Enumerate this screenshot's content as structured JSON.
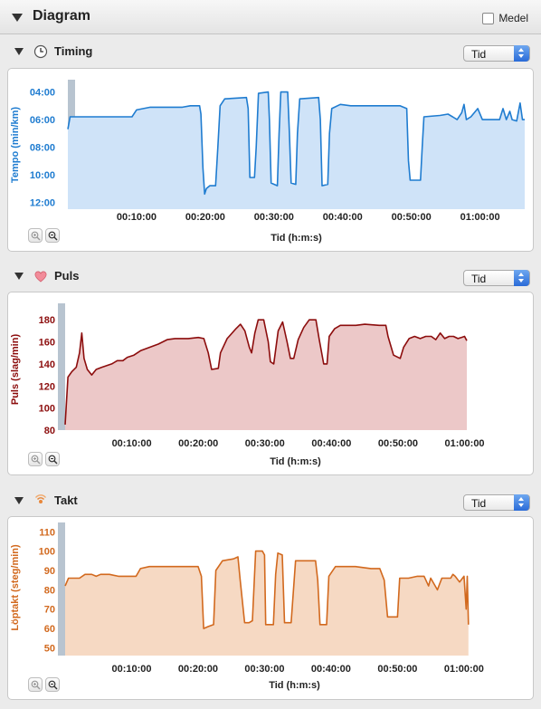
{
  "header": {
    "title": "Diagram",
    "medel_label": "Medel",
    "medel_checked": false
  },
  "sections": [
    {
      "key": "timing",
      "title": "Timing",
      "icon": "clock-icon",
      "select_value": "Tid",
      "color": "#1f7cd0",
      "fill": "#cfe3f8",
      "chart_data": {
        "type": "area",
        "ylabel": "Tempo (min/km)",
        "xlabel": "Tid (h:m:s)",
        "y_ticks": [
          "04:00",
          "06:00",
          "08:00",
          "10:00",
          "12:00"
        ],
        "y_tick_values": [
          4,
          6,
          8,
          10,
          12
        ],
        "ylim": [
          3.5,
          12.5
        ],
        "y_inverted": true,
        "x_ticks": [
          "00:10:00",
          "00:20:00",
          "00:30:00",
          "00:40:00",
          "00:50:00",
          "01:00:00"
        ],
        "x_tick_values": [
          600,
          1200,
          1800,
          2400,
          3000,
          3600
        ],
        "xlim": [
          0,
          3990
        ],
        "points": [
          [
            0,
            6.7
          ],
          [
            20,
            5.8
          ],
          [
            300,
            5.8
          ],
          [
            560,
            5.8
          ],
          [
            600,
            5.3
          ],
          [
            720,
            5.1
          ],
          [
            1000,
            5.1
          ],
          [
            1070,
            5.0
          ],
          [
            1150,
            5.0
          ],
          [
            1162,
            5.6
          ],
          [
            1180,
            9.5
          ],
          [
            1195,
            11.4
          ],
          [
            1210,
            11.0
          ],
          [
            1240,
            10.8
          ],
          [
            1290,
            10.8
          ],
          [
            1310,
            8.0
          ],
          [
            1330,
            5.0
          ],
          [
            1370,
            4.5
          ],
          [
            1560,
            4.4
          ],
          [
            1575,
            5.2
          ],
          [
            1590,
            10.2
          ],
          [
            1630,
            10.2
          ],
          [
            1645,
            8.0
          ],
          [
            1665,
            4.1
          ],
          [
            1750,
            4.0
          ],
          [
            1760,
            6.0
          ],
          [
            1775,
            10.6
          ],
          [
            1830,
            10.8
          ],
          [
            1845,
            7.0
          ],
          [
            1860,
            4.0
          ],
          [
            1920,
            4.0
          ],
          [
            1935,
            7.0
          ],
          [
            1950,
            10.6
          ],
          [
            1990,
            10.7
          ],
          [
            2005,
            7.0
          ],
          [
            2025,
            4.5
          ],
          [
            2190,
            4.4
          ],
          [
            2205,
            6.0
          ],
          [
            2220,
            10.8
          ],
          [
            2270,
            10.7
          ],
          [
            2285,
            7.0
          ],
          [
            2305,
            5.2
          ],
          [
            2380,
            4.9
          ],
          [
            2470,
            5.0
          ],
          [
            2900,
            5.0
          ],
          [
            2960,
            5.2
          ],
          [
            2975,
            9.0
          ],
          [
            2990,
            10.4
          ],
          [
            3080,
            10.4
          ],
          [
            3095,
            8.0
          ],
          [
            3110,
            5.8
          ],
          [
            3250,
            5.7
          ],
          [
            3320,
            5.6
          ],
          [
            3360,
            5.8
          ],
          [
            3400,
            6.0
          ],
          [
            3440,
            5.5
          ],
          [
            3460,
            4.9
          ],
          [
            3480,
            6.0
          ],
          [
            3520,
            5.8
          ],
          [
            3580,
            5.2
          ],
          [
            3620,
            6.0
          ],
          [
            3700,
            6.0
          ],
          [
            3770,
            6.0
          ],
          [
            3800,
            5.2
          ],
          [
            3830,
            6.0
          ],
          [
            3860,
            5.4
          ],
          [
            3880,
            6.0
          ],
          [
            3920,
            6.1
          ],
          [
            3950,
            4.8
          ],
          [
            3970,
            6.0
          ],
          [
            3990,
            6.0
          ]
        ]
      }
    },
    {
      "key": "puls",
      "title": "Puls",
      "icon": "heart-icon",
      "select_value": "Tid",
      "color": "#8c0d0d",
      "fill": "#ecc8c8",
      "chart_data": {
        "type": "area",
        "ylabel": "Puls (slag/min)",
        "xlabel": "Tid (h:m:s)",
        "y_ticks": [
          "180",
          "160",
          "140",
          "120",
          "100",
          "80"
        ],
        "y_tick_values": [
          180,
          160,
          140,
          120,
          100,
          80
        ],
        "ylim": [
          80,
          190
        ],
        "y_inverted": false,
        "x_ticks": [
          "00:10:00",
          "00:20:00",
          "00:30:00",
          "00:40:00",
          "00:50:00",
          "01:00:00"
        ],
        "x_tick_values": [
          600,
          1200,
          1800,
          2400,
          3000,
          3600
        ],
        "xlim": [
          0,
          4150
        ],
        "points": [
          [
            0,
            85
          ],
          [
            25,
            128
          ],
          [
            60,
            133
          ],
          [
            100,
            137
          ],
          [
            130,
            150
          ],
          [
            150,
            168
          ],
          [
            170,
            145
          ],
          [
            200,
            135
          ],
          [
            240,
            130
          ],
          [
            280,
            135
          ],
          [
            330,
            137
          ],
          [
            420,
            140
          ],
          [
            470,
            143
          ],
          [
            520,
            143
          ],
          [
            560,
            146
          ],
          [
            620,
            148
          ],
          [
            680,
            152
          ],
          [
            760,
            155
          ],
          [
            840,
            158
          ],
          [
            920,
            162
          ],
          [
            990,
            163
          ],
          [
            1110,
            163
          ],
          [
            1200,
            164
          ],
          [
            1250,
            163
          ],
          [
            1290,
            150
          ],
          [
            1320,
            135
          ],
          [
            1380,
            136
          ],
          [
            1400,
            150
          ],
          [
            1460,
            163
          ],
          [
            1540,
            172
          ],
          [
            1580,
            176
          ],
          [
            1620,
            170
          ],
          [
            1660,
            155
          ],
          [
            1680,
            150
          ],
          [
            1710,
            168
          ],
          [
            1740,
            180
          ],
          [
            1790,
            180
          ],
          [
            1830,
            160
          ],
          [
            1850,
            142
          ],
          [
            1880,
            140
          ],
          [
            1920,
            170
          ],
          [
            1960,
            178
          ],
          [
            2000,
            160
          ],
          [
            2030,
            145
          ],
          [
            2060,
            145
          ],
          [
            2100,
            162
          ],
          [
            2150,
            173
          ],
          [
            2200,
            180
          ],
          [
            2260,
            180
          ],
          [
            2290,
            162
          ],
          [
            2330,
            140
          ],
          [
            2360,
            140
          ],
          [
            2380,
            165
          ],
          [
            2430,
            172
          ],
          [
            2480,
            175
          ],
          [
            2550,
            175
          ],
          [
            2620,
            175
          ],
          [
            2700,
            176
          ],
          [
            2830,
            175
          ],
          [
            2890,
            175
          ],
          [
            2910,
            165
          ],
          [
            2960,
            148
          ],
          [
            3020,
            145
          ],
          [
            3050,
            155
          ],
          [
            3100,
            163
          ],
          [
            3150,
            165
          ],
          [
            3200,
            163
          ],
          [
            3250,
            165
          ],
          [
            3300,
            165
          ],
          [
            3340,
            162
          ],
          [
            3380,
            168
          ],
          [
            3420,
            163
          ],
          [
            3460,
            165
          ],
          [
            3500,
            165
          ],
          [
            3540,
            163
          ],
          [
            3570,
            164
          ],
          [
            3600,
            165
          ],
          [
            3620,
            161
          ]
        ]
      }
    },
    {
      "key": "takt",
      "title": "Takt",
      "icon": "signal-icon",
      "select_value": "Tid",
      "color": "#d2691e",
      "fill": "#f6d9c3",
      "chart_data": {
        "type": "area",
        "ylabel": "Löptakt (steg/min)",
        "xlabel": "Tid (h:m:s)",
        "y_ticks": [
          "110",
          "100",
          "90",
          "80",
          "70",
          "60",
          "50"
        ],
        "y_tick_values": [
          110,
          100,
          90,
          80,
          70,
          60,
          50
        ],
        "ylim": [
          46,
          112
        ],
        "y_inverted": false,
        "x_ticks": [
          "00:10:00",
          "00:20:00",
          "00:30:00",
          "00:40:00",
          "00:50:00",
          "01:00:00"
        ],
        "x_tick_values": [
          600,
          1200,
          1800,
          2400,
          3000,
          3600
        ],
        "xlim": [
          0,
          4140
        ],
        "points": [
          [
            0,
            82
          ],
          [
            30,
            86
          ],
          [
            130,
            86
          ],
          [
            180,
            88
          ],
          [
            240,
            88
          ],
          [
            280,
            87
          ],
          [
            320,
            88
          ],
          [
            400,
            88
          ],
          [
            480,
            87
          ],
          [
            600,
            87
          ],
          [
            640,
            87
          ],
          [
            680,
            91
          ],
          [
            760,
            92
          ],
          [
            880,
            92
          ],
          [
            1000,
            92
          ],
          [
            1100,
            92
          ],
          [
            1200,
            92
          ],
          [
            1230,
            87
          ],
          [
            1250,
            60
          ],
          [
            1290,
            61
          ],
          [
            1340,
            62
          ],
          [
            1360,
            90
          ],
          [
            1420,
            95
          ],
          [
            1520,
            96
          ],
          [
            1560,
            97
          ],
          [
            1580,
            85
          ],
          [
            1620,
            63
          ],
          [
            1660,
            63
          ],
          [
            1690,
            64
          ],
          [
            1720,
            100
          ],
          [
            1780,
            100
          ],
          [
            1800,
            98
          ],
          [
            1810,
            62
          ],
          [
            1880,
            62
          ],
          [
            1900,
            88
          ],
          [
            1920,
            99
          ],
          [
            1960,
            98
          ],
          [
            1980,
            63
          ],
          [
            2040,
            63
          ],
          [
            2080,
            95
          ],
          [
            2140,
            95
          ],
          [
            2260,
            95
          ],
          [
            2280,
            85
          ],
          [
            2300,
            62
          ],
          [
            2360,
            62
          ],
          [
            2380,
            87
          ],
          [
            2440,
            92
          ],
          [
            2520,
            92
          ],
          [
            2620,
            92
          ],
          [
            2760,
            91
          ],
          [
            2840,
            91
          ],
          [
            2880,
            85
          ],
          [
            2910,
            66
          ],
          [
            2960,
            66
          ],
          [
            3000,
            66
          ],
          [
            3020,
            86
          ],
          [
            3100,
            86
          ],
          [
            3180,
            87
          ],
          [
            3240,
            87
          ],
          [
            3280,
            82
          ],
          [
            3300,
            86
          ],
          [
            3360,
            80
          ],
          [
            3380,
            83
          ],
          [
            3400,
            86
          ],
          [
            3480,
            86
          ],
          [
            3500,
            88
          ],
          [
            3520,
            87
          ],
          [
            3560,
            84
          ],
          [
            3600,
            87
          ],
          [
            3620,
            70
          ],
          [
            3630,
            87
          ],
          [
            3640,
            62
          ]
        ]
      }
    }
  ]
}
